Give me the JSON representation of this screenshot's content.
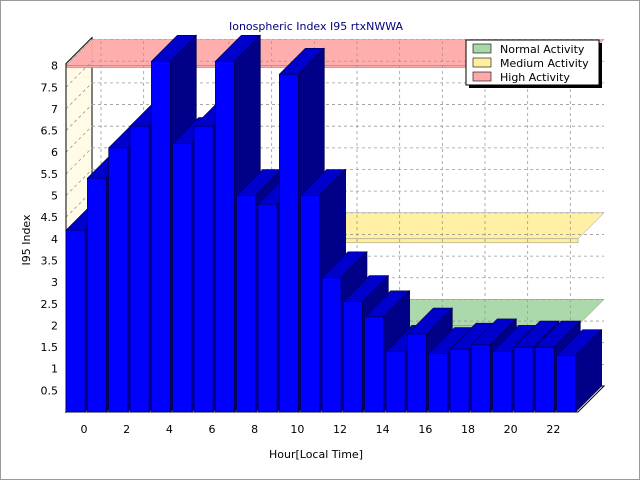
{
  "chart_data": {
    "type": "bar",
    "title": "Ionospheric Index I95 rtxNWWA",
    "xlabel": "Hour[Local Time]",
    "ylabel": "I95 Index",
    "x_tick_labels": [
      "0",
      "2",
      "4",
      "6",
      "8",
      "10",
      "12",
      "14",
      "16",
      "18",
      "20",
      "22"
    ],
    "y_ticks": [
      0.5,
      1,
      1.5,
      2,
      2.5,
      3,
      3.5,
      4,
      4.5,
      5,
      5.5,
      6,
      6.5,
      7,
      7.5,
      8
    ],
    "ylim": [
      0,
      8
    ],
    "x": [
      0,
      1,
      2,
      3,
      4,
      5,
      6,
      7,
      8,
      9,
      10,
      11,
      12,
      13,
      14,
      15,
      16,
      17,
      18,
      19,
      20,
      21,
      22,
      23
    ],
    "values": [
      4.2,
      5.4,
      6.1,
      6.6,
      8.1,
      6.2,
      6.6,
      8.1,
      5.0,
      4.8,
      7.8,
      5.0,
      3.1,
      2.55,
      2.2,
      1.4,
      1.8,
      1.35,
      1.45,
      1.55,
      1.4,
      1.5,
      1.5,
      1.3
    ],
    "bar_color": "#0000ff",
    "bands": [
      {
        "name": "Normal Activity",
        "level": 2,
        "color": "#a8d8a8"
      },
      {
        "name": "Medium Activity",
        "level": 4,
        "color": "#fff0a0"
      },
      {
        "name": "High Activity",
        "level": 8,
        "color": "#ffaaaa"
      }
    ],
    "legend_position": "top-right",
    "grid": true,
    "three_d": true
  }
}
